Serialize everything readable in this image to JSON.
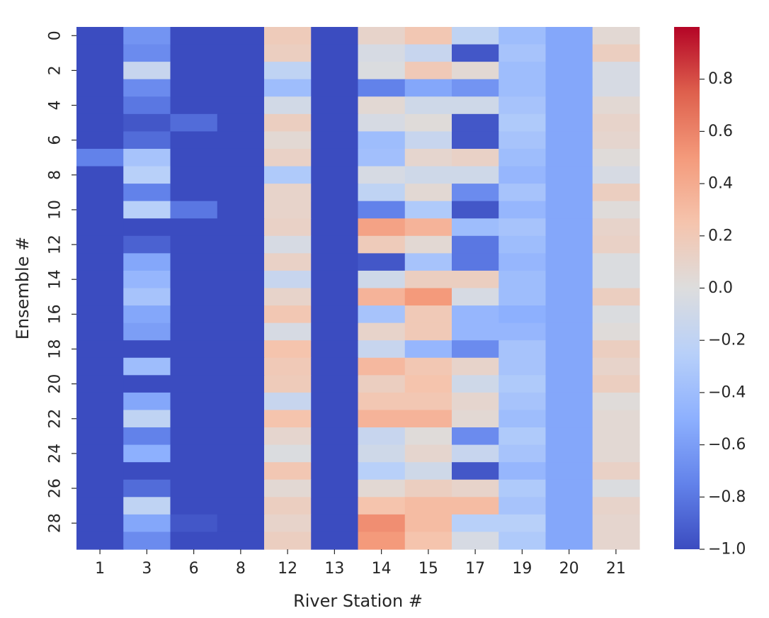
{
  "chart_data": {
    "type": "heatmap",
    "xlabel": "River Station #",
    "ylabel": "Ensemble #",
    "x_categories": [
      "1",
      "3",
      "6",
      "8",
      "12",
      "13",
      "14",
      "15",
      "17",
      "19",
      "20",
      "21"
    ],
    "y_categories": [
      0,
      1,
      2,
      3,
      4,
      5,
      6,
      7,
      8,
      9,
      10,
      11,
      12,
      13,
      14,
      15,
      16,
      17,
      18,
      19,
      20,
      21,
      22,
      23,
      24,
      25,
      26,
      27,
      28,
      29
    ],
    "y_tick_labels": [
      "0",
      "2",
      "4",
      "6",
      "8",
      "10",
      "12",
      "14",
      "16",
      "18",
      "20",
      "22",
      "24",
      "26",
      "28"
    ],
    "colormap": "coolwarm",
    "vmin": -1.0,
    "vmax": 1.0,
    "colorbar_ticks": [
      "0.8",
      "0.6",
      "0.4",
      "0.2",
      "0.0",
      "−0.2",
      "−0.4",
      "−0.6",
      "−0.8",
      "−1.0"
    ],
    "colorbar_tick_values": [
      0.8,
      0.6,
      0.4,
      0.2,
      0.0,
      -0.2,
      -0.4,
      -0.6,
      -0.8,
      -1.0
    ],
    "values": [
      [
        -1.0,
        -0.65,
        -1.0,
        -1.0,
        0.18,
        -1.0,
        0.1,
        0.22,
        -0.2,
        -0.4,
        -0.55,
        0.05
      ],
      [
        -1.0,
        -0.7,
        -1.0,
        -1.0,
        0.15,
        -1.0,
        -0.05,
        -0.15,
        -0.95,
        -0.35,
        -0.55,
        0.15
      ],
      [
        -1.0,
        -0.15,
        -1.0,
        -1.0,
        -0.2,
        -1.0,
        -0.02,
        0.2,
        0.05,
        -0.4,
        -0.55,
        -0.05
      ],
      [
        -1.0,
        -0.7,
        -1.0,
        -1.0,
        -0.4,
        -1.0,
        -0.75,
        -0.55,
        -0.65,
        -0.4,
        -0.55,
        -0.05
      ],
      [
        -1.0,
        -0.8,
        -1.0,
        -1.0,
        -0.08,
        -1.0,
        0.05,
        -0.1,
        -0.1,
        -0.35,
        -0.55,
        0.05
      ],
      [
        -1.0,
        -0.95,
        -0.85,
        -1.0,
        0.15,
        -1.0,
        -0.05,
        0.02,
        -0.95,
        -0.3,
        -0.55,
        0.1
      ],
      [
        -1.0,
        -0.85,
        -1.0,
        -1.0,
        0.05,
        -1.0,
        -0.4,
        -0.15,
        -0.95,
        -0.35,
        -0.55,
        0.08
      ],
      [
        -0.75,
        -0.35,
        -1.0,
        -1.0,
        0.12,
        -1.0,
        -0.38,
        0.08,
        0.12,
        -0.4,
        -0.55,
        0.02
      ],
      [
        -1.0,
        -0.25,
        -1.0,
        -1.0,
        -0.3,
        -1.0,
        -0.05,
        -0.1,
        -0.1,
        -0.45,
        -0.55,
        -0.05
      ],
      [
        -1.0,
        -0.75,
        -1.0,
        -1.0,
        0.1,
        -1.0,
        -0.2,
        0.05,
        -0.7,
        -0.35,
        -0.55,
        0.15
      ],
      [
        -1.0,
        -0.25,
        -0.8,
        -1.0,
        0.1,
        -1.0,
        -0.75,
        -0.3,
        -0.95,
        -0.45,
        -0.55,
        0.02
      ],
      [
        -1.0,
        -1.0,
        -1.0,
        -1.0,
        0.12,
        -1.0,
        0.45,
        0.35,
        -0.4,
        -0.35,
        -0.55,
        0.1
      ],
      [
        -1.0,
        -0.9,
        -1.0,
        -1.0,
        -0.05,
        -1.0,
        0.18,
        0.05,
        -0.8,
        -0.4,
        -0.55,
        0.12
      ],
      [
        -1.0,
        -0.55,
        -1.0,
        -1.0,
        0.12,
        -1.0,
        -0.95,
        -0.35,
        -0.8,
        -0.45,
        -0.55,
        -0.02
      ],
      [
        -1.0,
        -0.45,
        -1.0,
        -1.0,
        -0.15,
        -1.0,
        -0.1,
        0.15,
        0.15,
        -0.4,
        -0.55,
        -0.02
      ],
      [
        -1.0,
        -0.35,
        -1.0,
        -1.0,
        0.1,
        -1.0,
        0.35,
        0.5,
        -0.05,
        -0.4,
        -0.55,
        0.15
      ],
      [
        -1.0,
        -0.55,
        -1.0,
        -1.0,
        0.22,
        -1.0,
        -0.35,
        0.2,
        -0.45,
        -0.5,
        -0.55,
        -0.02
      ],
      [
        -1.0,
        -0.6,
        -1.0,
        -1.0,
        -0.05,
        -1.0,
        0.1,
        0.2,
        -0.45,
        -0.45,
        -0.55,
        0.02
      ],
      [
        -1.0,
        -1.0,
        -1.0,
        -1.0,
        0.25,
        -1.0,
        -0.15,
        -0.45,
        -0.7,
        -0.35,
        -0.55,
        0.15
      ],
      [
        -1.0,
        -0.4,
        -1.0,
        -1.0,
        0.2,
        -1.0,
        0.32,
        0.22,
        0.1,
        -0.35,
        -0.55,
        0.1
      ],
      [
        -1.0,
        -1.0,
        -1.0,
        -1.0,
        0.18,
        -1.0,
        0.15,
        0.25,
        -0.1,
        -0.3,
        -0.55,
        0.15
      ],
      [
        -1.0,
        -0.55,
        -1.0,
        -1.0,
        -0.15,
        -1.0,
        0.22,
        0.22,
        0.08,
        -0.35,
        -0.55,
        0.02
      ],
      [
        -1.0,
        -0.2,
        -1.0,
        -1.0,
        0.25,
        -1.0,
        0.35,
        0.35,
        0.05,
        -0.4,
        -0.55,
        0.05
      ],
      [
        -1.0,
        -0.75,
        -1.0,
        -1.0,
        0.08,
        -1.0,
        -0.15,
        0.02,
        -0.7,
        -0.3,
        -0.55,
        0.05
      ],
      [
        -1.0,
        -0.5,
        -1.0,
        -1.0,
        -0.02,
        -1.0,
        -0.1,
        0.08,
        -0.15,
        -0.35,
        -0.55,
        0.05
      ],
      [
        -1.0,
        -1.0,
        -1.0,
        -1.0,
        0.22,
        -1.0,
        -0.25,
        -0.1,
        -0.95,
        -0.45,
        -0.55,
        0.12
      ],
      [
        -1.0,
        -0.85,
        -1.0,
        -1.0,
        0.05,
        -1.0,
        0.05,
        0.15,
        0.1,
        -0.3,
        -0.55,
        -0.02
      ],
      [
        -1.0,
        -0.2,
        -1.0,
        -1.0,
        0.15,
        -1.0,
        0.25,
        0.3,
        0.3,
        -0.35,
        -0.55,
        0.1
      ],
      [
        -1.0,
        -0.55,
        -0.95,
        -1.0,
        0.1,
        -1.0,
        0.55,
        0.3,
        -0.25,
        -0.25,
        -0.55,
        0.08
      ],
      [
        -1.0,
        -0.7,
        -1.0,
        -1.0,
        0.15,
        -1.0,
        0.5,
        0.25,
        -0.05,
        -0.3,
        -0.55,
        0.08
      ]
    ]
  }
}
